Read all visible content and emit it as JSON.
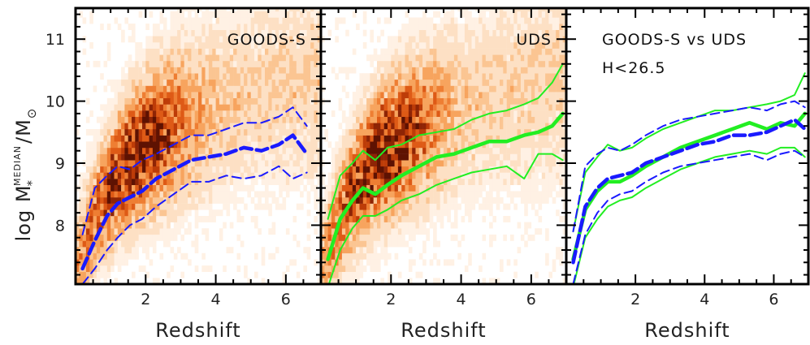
{
  "chart_data": {
    "type": "line",
    "ylabel_main": "log M",
    "ylabel_sub": "*",
    "ylabel_sup": "MEDIAN",
    "ylabel_tail": "/M",
    "ylabel_sun": "⊙",
    "xlim": [
      0,
      7
    ],
    "ylim": [
      7.05,
      11.5
    ],
    "xticks": [
      2,
      4,
      6
    ],
    "yticks": [
      8,
      9,
      10,
      11
    ],
    "colors": {
      "goods": "#1a1aff",
      "uds": "#22ee22",
      "frame": "#000000"
    },
    "panels": [
      {
        "xlabel": "Redshift",
        "labels": [
          "GOODS-S"
        ],
        "density": "goods",
        "series": [
          {
            "color_key": "goods",
            "style": "dashed-thick",
            "x": [
              0.2,
              0.55,
              0.9,
              1.2,
              1.55,
              1.9,
              2.3,
              2.8,
              3.3,
              3.8,
              4.3,
              4.8,
              5.3,
              5.8,
              6.2,
              6.6
            ],
            "y": [
              7.3,
              7.75,
              8.15,
              8.35,
              8.45,
              8.55,
              8.75,
              8.9,
              9.05,
              9.1,
              9.15,
              9.25,
              9.2,
              9.3,
              9.45,
              9.15
            ]
          },
          {
            "color_key": "goods",
            "style": "dashed",
            "x": [
              0.2,
              0.55,
              0.9,
              1.2,
              1.55,
              1.9,
              2.3,
              2.8,
              3.3,
              3.8,
              4.3,
              4.8,
              5.3,
              5.8,
              6.2,
              6.6
            ],
            "y": [
              7.85,
              8.6,
              8.8,
              8.95,
              8.9,
              9.05,
              9.15,
              9.3,
              9.45,
              9.45,
              9.55,
              9.65,
              9.65,
              9.75,
              9.9,
              9.6
            ]
          },
          {
            "color_key": "goods",
            "style": "dashed",
            "x": [
              0.2,
              0.55,
              0.9,
              1.2,
              1.55,
              1.9,
              2.3,
              2.8,
              3.3,
              3.8,
              4.3,
              4.8,
              5.3,
              5.8,
              6.2,
              6.6
            ],
            "y": [
              7.05,
              7.3,
              7.6,
              7.8,
              8.0,
              8.1,
              8.3,
              8.5,
              8.7,
              8.7,
              8.8,
              8.75,
              8.8,
              8.95,
              8.75,
              8.85
            ]
          }
        ]
      },
      {
        "xlabel": "Redshift",
        "labels": [
          "UDS"
        ],
        "density": "uds",
        "series": [
          {
            "color_key": "uds",
            "style": "solid-thick",
            "x": [
              0.2,
              0.55,
              0.9,
              1.2,
              1.55,
              1.9,
              2.3,
              2.8,
              3.3,
              3.8,
              4.3,
              4.8,
              5.3,
              5.8,
              6.2,
              6.6,
              6.9
            ],
            "y": [
              7.45,
              8.1,
              8.4,
              8.6,
              8.5,
              8.65,
              8.8,
              8.95,
              9.1,
              9.15,
              9.25,
              9.35,
              9.35,
              9.45,
              9.5,
              9.6,
              9.8
            ]
          },
          {
            "color_key": "uds",
            "style": "solid",
            "x": [
              0.2,
              0.55,
              0.9,
              1.2,
              1.55,
              1.9,
              2.3,
              2.8,
              3.3,
              3.8,
              4.3,
              4.8,
              5.3,
              5.8,
              6.2,
              6.6,
              6.9
            ],
            "y": [
              8.1,
              8.8,
              9.0,
              9.2,
              9.05,
              9.25,
              9.3,
              9.45,
              9.5,
              9.55,
              9.7,
              9.8,
              9.85,
              9.95,
              10.05,
              10.3,
              10.6
            ]
          },
          {
            "color_key": "uds",
            "style": "solid",
            "x": [
              0.2,
              0.55,
              0.9,
              1.2,
              1.55,
              1.9,
              2.3,
              2.8,
              3.3,
              3.8,
              4.3,
              4.8,
              5.3,
              5.8,
              6.2,
              6.6,
              6.9
            ],
            "y": [
              7.0,
              7.6,
              7.95,
              8.15,
              8.15,
              8.25,
              8.4,
              8.5,
              8.65,
              8.75,
              8.85,
              8.9,
              8.95,
              8.75,
              9.15,
              9.15,
              9.05
            ]
          }
        ]
      },
      {
        "xlabel": "Redshift",
        "labels": [
          "GOODS-S vs UDS",
          "H<26.5"
        ],
        "density": "none",
        "series": [
          {
            "color_key": "uds",
            "style": "solid-thick",
            "x": [
              0.2,
              0.55,
              0.9,
              1.2,
              1.55,
              1.9,
              2.3,
              2.8,
              3.3,
              3.8,
              4.3,
              4.8,
              5.3,
              5.8,
              6.2,
              6.6,
              6.9
            ],
            "y": [
              7.45,
              8.25,
              8.55,
              8.7,
              8.7,
              8.8,
              8.95,
              9.1,
              9.25,
              9.35,
              9.45,
              9.55,
              9.65,
              9.55,
              9.65,
              9.6,
              9.8
            ]
          },
          {
            "color_key": "uds",
            "style": "solid",
            "x": [
              0.2,
              0.55,
              0.9,
              1.2,
              1.55,
              1.9,
              2.3,
              2.8,
              3.3,
              3.8,
              4.3,
              4.8,
              5.3,
              5.8,
              6.2,
              6.6,
              6.9
            ],
            "y": [
              7.9,
              8.85,
              9.1,
              9.3,
              9.2,
              9.25,
              9.4,
              9.55,
              9.65,
              9.75,
              9.85,
              9.85,
              9.9,
              9.95,
              10.0,
              10.1,
              10.45
            ]
          },
          {
            "color_key": "uds",
            "style": "solid",
            "x": [
              0.2,
              0.55,
              0.9,
              1.2,
              1.55,
              1.9,
              2.3,
              2.8,
              3.3,
              3.8,
              4.3,
              4.8,
              5.3,
              5.8,
              6.2,
              6.6,
              6.9
            ],
            "y": [
              7.0,
              7.8,
              8.1,
              8.3,
              8.4,
              8.45,
              8.6,
              8.75,
              8.9,
              9.0,
              9.1,
              9.15,
              9.2,
              9.15,
              9.25,
              9.25,
              9.1
            ]
          },
          {
            "color_key": "goods",
            "style": "dashed-thick",
            "x": [
              0.2,
              0.55,
              0.9,
              1.2,
              1.55,
              1.9,
              2.3,
              2.8,
              3.3,
              3.8,
              4.3,
              4.8,
              5.3,
              5.8,
              6.2,
              6.6,
              6.9
            ],
            "y": [
              7.4,
              8.3,
              8.6,
              8.75,
              8.8,
              8.85,
              9.0,
              9.1,
              9.2,
              9.3,
              9.35,
              9.45,
              9.45,
              9.5,
              9.6,
              9.7,
              9.55
            ]
          },
          {
            "color_key": "goods",
            "style": "dashed",
            "x": [
              0.2,
              0.55,
              0.9,
              1.2,
              1.55,
              1.9,
              2.3,
              2.8,
              3.3,
              3.8,
              4.3,
              4.8,
              5.3,
              5.8,
              6.2,
              6.6,
              6.9
            ],
            "y": [
              7.9,
              8.95,
              9.15,
              9.25,
              9.2,
              9.3,
              9.45,
              9.6,
              9.7,
              9.75,
              9.8,
              9.85,
              9.9,
              9.85,
              9.95,
              10.0,
              9.9
            ]
          },
          {
            "color_key": "goods",
            "style": "dashed",
            "x": [
              0.2,
              0.55,
              0.9,
              1.2,
              1.55,
              1.9,
              2.3,
              2.8,
              3.3,
              3.8,
              4.3,
              4.8,
              5.3,
              5.8,
              6.2,
              6.6,
              6.9
            ],
            "y": [
              7.05,
              7.85,
              8.2,
              8.4,
              8.5,
              8.55,
              8.7,
              8.85,
              8.95,
              9.0,
              9.05,
              9.1,
              9.15,
              9.05,
              9.15,
              9.2,
              9.1
            ]
          }
        ]
      }
    ]
  }
}
